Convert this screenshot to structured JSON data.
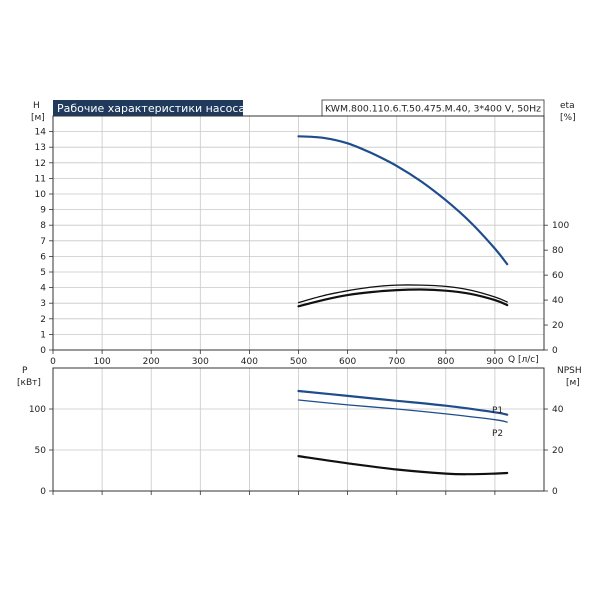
{
  "header": {
    "title": "Рабочие характеристики насоса",
    "model": "KWM.800.110.6.T.50.475.M.40, 3*400 V, 50Hz"
  },
  "colors": {
    "title_bg": "#1f3a5c",
    "head_curve": "#1e4d8c",
    "eff_curve": "#111111",
    "power_curve": "#1e4d8c",
    "npsh_curve": "#111111",
    "grid": "#c8c8c8",
    "frame": "#333333"
  },
  "chart_data": [
    {
      "id": "top",
      "type": "line",
      "xlabel": "Q [л/с]",
      "xlim": [
        0,
        1000
      ],
      "xticks": [
        0,
        100,
        200,
        300,
        400,
        500,
        600,
        700,
        800,
        900
      ],
      "ylabel_left": {
        "name": "H",
        "unit": "[м]"
      },
      "ylim_left": [
        0,
        15
      ],
      "yticks_left": [
        0,
        1,
        2,
        3,
        4,
        5,
        6,
        7,
        8,
        9,
        10,
        11,
        12,
        13,
        14
      ],
      "ylabel_right": {
        "name": "eta",
        "unit": "[%]"
      },
      "ylim_right": [
        0,
        187.5
      ],
      "yticks_right": [
        0,
        20,
        40,
        60,
        80,
        100
      ],
      "grid": true,
      "series": [
        {
          "axis": "left",
          "x": [
            500,
            550,
            600,
            650,
            700,
            750,
            800,
            850,
            900,
            925
          ],
          "y": [
            13.7,
            13.6,
            13.25,
            12.6,
            11.8,
            10.8,
            9.6,
            8.2,
            6.5,
            5.5
          ]
        },
        {
          "axis": "right",
          "x": [
            500,
            550,
            600,
            650,
            700,
            750,
            800,
            850,
            900,
            925
          ],
          "y": [
            38,
            43.5,
            47.5,
            50.5,
            52,
            52,
            51,
            48,
            42.5,
            38.5
          ]
        },
        {
          "axis": "right",
          "x": [
            500,
            550,
            600,
            650,
            700,
            750,
            800,
            850,
            900,
            925
          ],
          "y": [
            35,
            40,
            44,
            46.5,
            48,
            48.5,
            47.5,
            45,
            40,
            36
          ]
        }
      ]
    },
    {
      "id": "bottom",
      "type": "line",
      "xlim": [
        0,
        1000
      ],
      "xticks": [
        0,
        100,
        200,
        300,
        400,
        500,
        600,
        700,
        800,
        900
      ],
      "ylabel_left": {
        "name": "P",
        "unit": "[кВт]"
      },
      "ylim_left": [
        0,
        150
      ],
      "yticks_left": [
        0,
        50,
        100
      ],
      "ylabel_right": {
        "name": "NPSH",
        "unit": "[м]"
      },
      "ylim_right": [
        0,
        60
      ],
      "yticks_right": [
        0,
        20,
        40
      ],
      "grid": true,
      "series": [
        {
          "name": "P1",
          "axis": "left",
          "x": [
            500,
            600,
            700,
            800,
            900,
            925
          ],
          "y": [
            122,
            116,
            110,
            104,
            96,
            93
          ]
        },
        {
          "name": "P2",
          "axis": "left",
          "x": [
            500,
            600,
            700,
            800,
            900,
            925
          ],
          "y": [
            111,
            105,
            100,
            94,
            87,
            84
          ]
        },
        {
          "axis": "right",
          "x": [
            500,
            600,
            700,
            800,
            850,
            900,
            925
          ],
          "y": [
            17,
            13.5,
            10.5,
            8.5,
            8.2,
            8.5,
            8.8
          ]
        }
      ]
    }
  ]
}
